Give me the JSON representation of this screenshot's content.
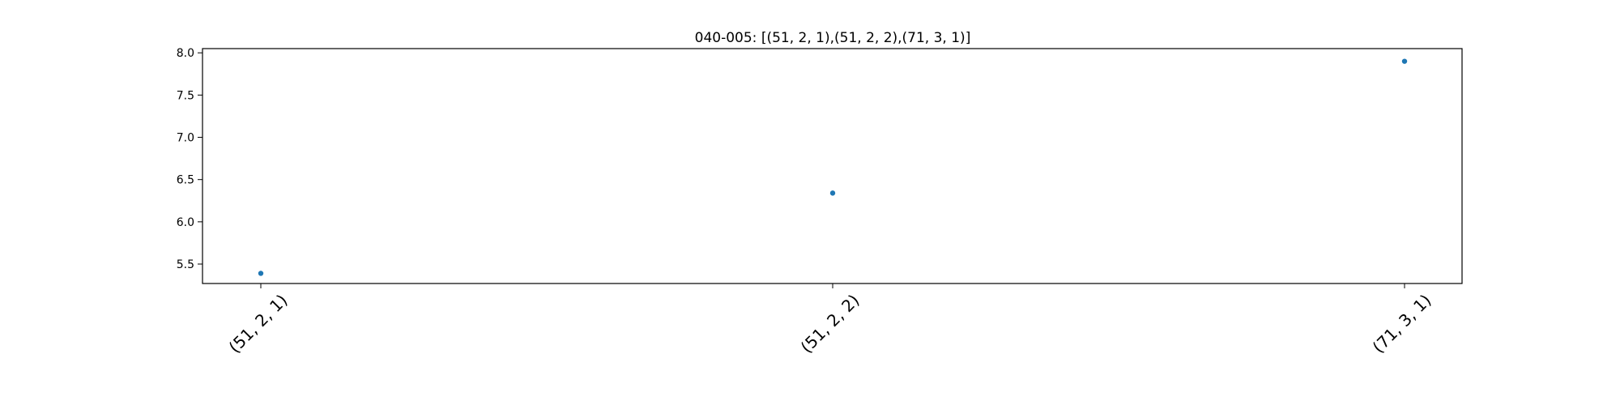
{
  "chart_data": {
    "type": "scatter",
    "title": "040-005: [(51, 2, 1),(51, 2, 2),(71, 3, 1)]",
    "xlabel": "",
    "ylabel": "",
    "categories": [
      "(51, 2, 1)",
      "(51, 2, 2)",
      "(71, 3, 1)"
    ],
    "series": [
      {
        "values": [
          5.39,
          6.34,
          7.9
        ],
        "color": "#1f77b4"
      }
    ],
    "ylim": [
      5.27,
      8.05
    ],
    "yticks": [
      5.5,
      6.0,
      6.5,
      7.0,
      7.5,
      8.0
    ],
    "ytick_labels": [
      "5.5",
      "6.0",
      "6.5",
      "7.0",
      "7.5",
      "8.0"
    ],
    "xtick_rotation": -45,
    "grid": false,
    "legend": "none"
  }
}
